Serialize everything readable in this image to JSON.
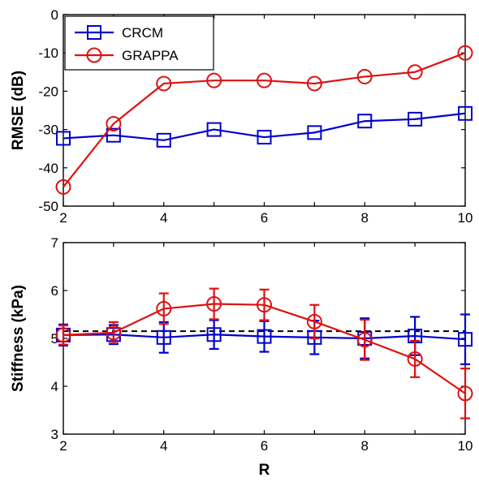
{
  "chart_data": [
    {
      "type": "line",
      "title": "",
      "xlabel": "",
      "ylabel": "RMSE (dB)",
      "x": [
        2,
        3,
        4,
        5,
        6,
        7,
        8,
        9,
        10
      ],
      "xlim": [
        2,
        10
      ],
      "ylim": [
        -50,
        0
      ],
      "xticks": [
        "2",
        "4",
        "6",
        "8",
        "10"
      ],
      "yticks": [
        "0",
        "-10",
        "-20",
        "-30",
        "-40",
        "-50"
      ],
      "grid": false,
      "legend": "top-left",
      "series": [
        {
          "name": "CRCM",
          "color": "#0000cc",
          "marker": "square",
          "values": [
            -32.3,
            -31.5,
            -32.8,
            -30.0,
            -32.0,
            -30.8,
            -27.8,
            -27.3,
            -25.8
          ]
        },
        {
          "name": "GRAPPA",
          "color": "#dd1111",
          "marker": "circle",
          "values": [
            -45.0,
            -28.5,
            -18.0,
            -17.2,
            -17.2,
            -18.0,
            -16.2,
            -15.0,
            -10.0
          ]
        }
      ]
    },
    {
      "type": "line",
      "title": "",
      "xlabel": "R",
      "ylabel": "Stiffness (kPa)",
      "x": [
        2,
        3,
        4,
        5,
        6,
        7,
        8,
        9,
        10
      ],
      "xlim": [
        2,
        10
      ],
      "ylim": [
        3,
        7
      ],
      "xticks": [
        "2",
        "4",
        "6",
        "8",
        "10"
      ],
      "yticks": [
        "7",
        "6",
        "5",
        "4",
        "3"
      ],
      "grid": false,
      "reference_line": {
        "value": 5.15,
        "style": "dashed",
        "color": "#000000"
      },
      "series": [
        {
          "name": "CRCM",
          "color": "#0000cc",
          "marker": "square",
          "values": [
            5.07,
            5.08,
            5.02,
            5.08,
            5.04,
            5.02,
            5.0,
            5.05,
            4.98
          ],
          "error": [
            0.22,
            0.2,
            0.32,
            0.3,
            0.32,
            0.35,
            0.42,
            0.4,
            0.52
          ]
        },
        {
          "name": "GRAPPA",
          "color": "#dd1111",
          "marker": "circle",
          "values": [
            5.07,
            5.12,
            5.62,
            5.72,
            5.7,
            5.35,
            4.97,
            4.57,
            3.85
          ],
          "error": [
            0.2,
            0.22,
            0.32,
            0.32,
            0.32,
            0.35,
            0.42,
            0.38,
            0.52
          ]
        }
      ]
    }
  ]
}
